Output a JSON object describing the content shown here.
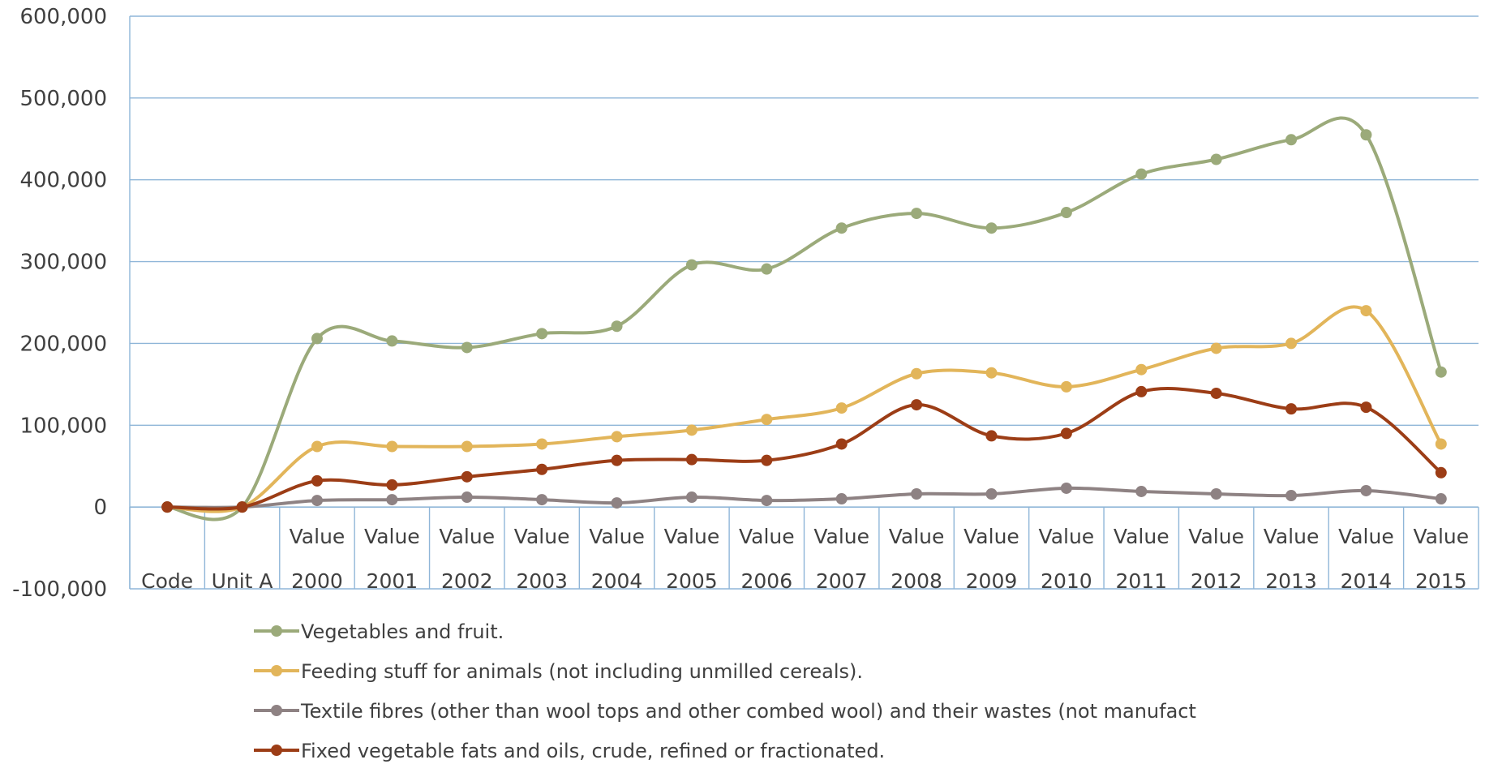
{
  "chart_data": {
    "type": "line",
    "title": "",
    "xlabel": "",
    "ylabel": "",
    "ylim": [
      -100000,
      600000
    ],
    "yticks": [
      "600,000",
      "500,000",
      "400,000",
      "300,000",
      "200,000",
      "100,000",
      "0",
      "-100,000"
    ],
    "yticks_values": [
      600000,
      500000,
      400000,
      300000,
      200000,
      100000,
      0,
      -100000
    ],
    "grid": true,
    "legend_position": "bottom",
    "smooth": true,
    "categories": [
      {
        "top": "",
        "bottom": "Code"
      },
      {
        "top": "",
        "bottom": "Unit A"
      },
      {
        "top": "Value",
        "bottom": "2000"
      },
      {
        "top": "Value",
        "bottom": "2001"
      },
      {
        "top": "Value",
        "bottom": "2002"
      },
      {
        "top": "Value",
        "bottom": "2003"
      },
      {
        "top": "Value",
        "bottom": "2004"
      },
      {
        "top": "Value",
        "bottom": "2005"
      },
      {
        "top": "Value",
        "bottom": "2006"
      },
      {
        "top": "Value",
        "bottom": "2007"
      },
      {
        "top": "Value",
        "bottom": "2008"
      },
      {
        "top": "Value",
        "bottom": "2009"
      },
      {
        "top": "Value",
        "bottom": "2010"
      },
      {
        "top": "Value",
        "bottom": "2011"
      },
      {
        "top": "Value",
        "bottom": "2012"
      },
      {
        "top": "Value",
        "bottom": "2013"
      },
      {
        "top": "Value",
        "bottom": "2014"
      },
      {
        "top": "Value",
        "bottom": "2015"
      }
    ],
    "series": [
      {
        "name": "Vegetables and fruit.",
        "color": "#9BAA7A",
        "values": [
          0,
          0,
          206000,
          203000,
          195000,
          212000,
          221000,
          296000,
          291000,
          341000,
          359000,
          341000,
          360000,
          407000,
          425000,
          449000,
          455000,
          165000
        ]
      },
      {
        "name": "Feeding stuff for animals (not including unmilled cereals).",
        "color": "#E2B55A",
        "values": [
          0,
          0,
          74000,
          74000,
          74000,
          77000,
          86000,
          94000,
          107000,
          121000,
          163000,
          164000,
          147000,
          168000,
          194000,
          200000,
          240000,
          77000
        ]
      },
      {
        "name": "Textile fibres (other than wool tops and other combed wool) and their wastes (not manufact",
        "color": "#8E8283",
        "values": [
          0,
          0,
          8000,
          9000,
          12000,
          9000,
          5000,
          12000,
          8000,
          10000,
          16000,
          16000,
          23000,
          19000,
          16000,
          14000,
          20000,
          10000
        ]
      },
      {
        "name": "Fixed vegetable fats and oils, crude, refined or fractionated.",
        "color": "#9C3D16",
        "values": [
          0,
          0,
          32000,
          27000,
          37000,
          46000,
          57000,
          58000,
          57000,
          77000,
          125000,
          87000,
          90000,
          141000,
          139000,
          120000,
          122000,
          42000
        ]
      }
    ]
  }
}
